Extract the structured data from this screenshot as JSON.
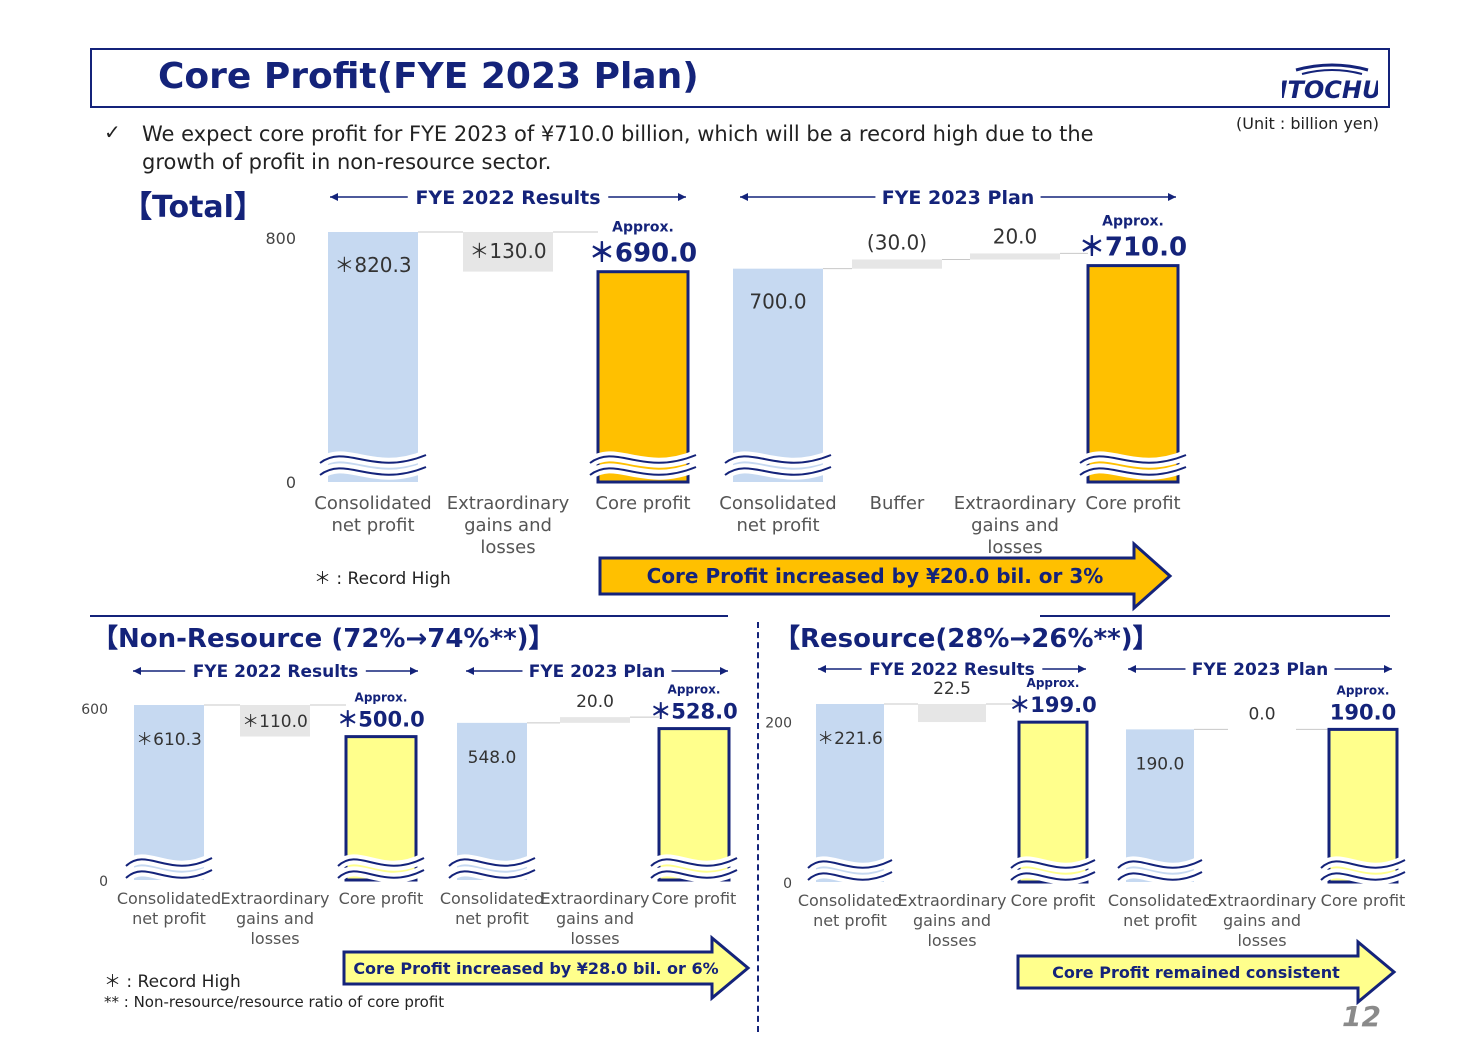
{
  "header": {
    "title": "Core Profit(FYE 2023 Plan)",
    "logo_text": "ITOCHU",
    "unit": "(Unit : billion yen)"
  },
  "bullet": {
    "mark": "✓",
    "text": "We expect core profit for FYE 2023 of ¥710.0 billion, which will be a record high due to the growth of profit in non-resource sector."
  },
  "sections": {
    "total": "【Total】",
    "non_resource": "【Non-Resource (72%→74%**)】",
    "resource": "【Resource(28%→26%**)】"
  },
  "footnotes": {
    "record_high": "＊ : Record High",
    "ratio": "** : Non-resource/resource ratio of core profit"
  },
  "page_number": "12",
  "colors": {
    "navy": "#14237a",
    "consolidated_blue": "#c6d9f1",
    "extraordinary_gray": "#e6e6e6",
    "core_total_orange": "#ffc000",
    "core_segment_yellow": "#ffff8c"
  },
  "chart_data": [
    {
      "id": "total",
      "type": "bar",
      "subtype": "waterfall",
      "groups": [
        "FYE 2022 Results",
        "FYE 2023 Plan"
      ],
      "categories": [
        "Consolidated net profit",
        "Extraordinary gains and losses",
        "Core profit",
        "Consolidated net profit",
        "Buffer",
        "Extraordinary gains and losses",
        "Core profit"
      ],
      "values": [
        820.3,
        130.0,
        690.0,
        700.0,
        -30.0,
        20.0,
        710.0
      ],
      "value_labels": [
        "＊820.3",
        "＊130.0",
        "＊690.0",
        "700.0",
        "(30.0)",
        "20.0",
        "＊710.0"
      ],
      "approx_labels": [
        "",
        "",
        "Approx.",
        "",
        "",
        "",
        "Approx."
      ],
      "yticks": [
        0,
        800
      ],
      "ylim": [
        0,
        820.3
      ],
      "arrow_text": "Core Profit increased by ¥20.0 bil. or 3%"
    },
    {
      "id": "non_resource",
      "type": "bar",
      "subtype": "waterfall",
      "groups": [
        "FYE 2022 Results",
        "FYE 2023 Plan"
      ],
      "categories": [
        "Consolidated net profit",
        "Extraordinary gains and losses",
        "Core profit",
        "Consolidated net profit",
        "Extraordinary gains and losses",
        "Core profit"
      ],
      "values": [
        610.3,
        110.0,
        500.0,
        548.0,
        20.0,
        528.0
      ],
      "value_labels": [
        "＊610.3",
        "＊110.0",
        "＊500.0",
        "548.0",
        "20.0",
        "＊528.0"
      ],
      "approx_labels": [
        "",
        "",
        "Approx.",
        "",
        "",
        "Approx."
      ],
      "yticks": [
        0,
        600
      ],
      "ylim": [
        0,
        610.3
      ],
      "arrow_text": "Core Profit increased by ¥28.0 bil. or 6%"
    },
    {
      "id": "resource",
      "type": "bar",
      "subtype": "waterfall",
      "groups": [
        "FYE 2022 Results",
        "FYE 2023 Plan"
      ],
      "categories": [
        "Consolidated net profit",
        "Extraordinary gains and losses",
        "Core profit",
        "Consolidated net profit",
        "Extraordinary gains and losses",
        "Core profit"
      ],
      "values": [
        221.6,
        22.5,
        199.0,
        190.0,
        0.0,
        190.0
      ],
      "value_labels": [
        "＊221.6",
        "22.5",
        "＊199.0",
        "190.0",
        "0.0",
        "190.0"
      ],
      "approx_labels": [
        "",
        "",
        "Approx.",
        "",
        "",
        "Approx."
      ],
      "yticks": [
        0,
        200
      ],
      "ylim": [
        0,
        221.6
      ],
      "arrow_text": "Core Profit remained  consistent"
    }
  ]
}
